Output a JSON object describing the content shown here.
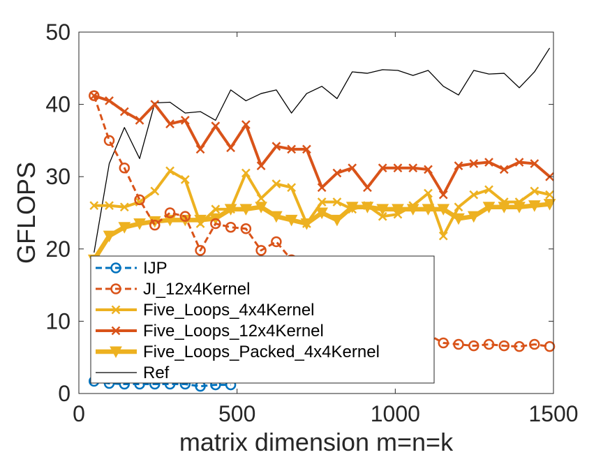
{
  "chart_data": {
    "type": "line",
    "xlabel": "matrix dimension m=n=k",
    "ylabel": "GFLOPS",
    "xlim": [
      0,
      1500
    ],
    "ylim": [
      0,
      50
    ],
    "xticks": [
      0,
      500,
      1000,
      1500
    ],
    "yticks": [
      0,
      10,
      20,
      30,
      40,
      50
    ],
    "grid": false,
    "legend_position": "bottom-left",
    "series": [
      {
        "name": "IJP",
        "color": "#0072BD",
        "style": "dashed",
        "marker": "circle",
        "x": [
          48,
          96,
          144,
          192,
          240,
          288,
          336,
          384,
          432,
          480
        ],
        "y": [
          1.7,
          1.4,
          1.3,
          1.3,
          1.3,
          1.3,
          1.3,
          1.0,
          1.2,
          1.2
        ]
      },
      {
        "name": "JI_12x4Kernel",
        "color": "#D95319",
        "style": "dashed",
        "marker": "circle",
        "x": [
          48,
          96,
          144,
          192,
          240,
          288,
          336,
          384,
          432,
          480,
          528,
          576,
          624,
          672,
          1152,
          1200,
          1248,
          1296,
          1344,
          1392,
          1440,
          1488
        ],
        "y": [
          41.2,
          35.0,
          31.2,
          26.8,
          23.3,
          25.0,
          24.5,
          19.8,
          23.5,
          23.0,
          22.8,
          19.8,
          21.0,
          18.5,
          7.0,
          6.8,
          6.6,
          6.8,
          6.6,
          6.5,
          6.8,
          6.5
        ]
      },
      {
        "name": "Five_Loops_4x4Kernel",
        "color": "#EDB120",
        "style": "solid",
        "marker": "x",
        "x": [
          48,
          96,
          144,
          192,
          240,
          288,
          336,
          384,
          432,
          480,
          528,
          576,
          624,
          672,
          720,
          768,
          816,
          864,
          912,
          960,
          1008,
          1056,
          1104,
          1152,
          1200,
          1248,
          1296,
          1344,
          1392,
          1440,
          1488
        ],
        "y": [
          26.0,
          26.0,
          25.8,
          26.5,
          28.0,
          30.8,
          29.6,
          23.5,
          25.5,
          25.5,
          30.5,
          27.0,
          29.0,
          28.5,
          23.5,
          26.5,
          26.5,
          25.5,
          26.0,
          24.5,
          24.8,
          26.0,
          27.7,
          21.8,
          25.8,
          27.5,
          28.2,
          26.5,
          26.5,
          28.0,
          27.5
        ]
      },
      {
        "name": "Five_Loops_12x4Kernel",
        "color": "#D95319",
        "style": "solid",
        "marker": "x",
        "x": [
          48,
          96,
          144,
          192,
          240,
          288,
          336,
          384,
          432,
          480,
          528,
          576,
          624,
          672,
          720,
          768,
          816,
          864,
          912,
          960,
          1008,
          1056,
          1104,
          1152,
          1200,
          1248,
          1296,
          1344,
          1392,
          1440,
          1488
        ],
        "y": [
          41.2,
          40.5,
          39.0,
          37.8,
          40.0,
          37.3,
          37.8,
          33.8,
          37.0,
          34.0,
          37.2,
          31.5,
          34.2,
          33.8,
          33.8,
          28.5,
          30.5,
          31.2,
          28.5,
          31.2,
          31.2,
          31.2,
          31.0,
          27.5,
          31.5,
          31.8,
          32.0,
          31.0,
          32.0,
          31.8,
          30.0
        ]
      },
      {
        "name": "Five_Loops_Packed_4x4Kernel",
        "color": "#EDB120",
        "style": "solid-thick",
        "marker": "triangle-down",
        "x": [
          48,
          96,
          144,
          192,
          240,
          288,
          336,
          384,
          432,
          480,
          528,
          576,
          624,
          672,
          720,
          768,
          816,
          864,
          912,
          960,
          1008,
          1056,
          1104,
          1152,
          1200,
          1248,
          1296,
          1344,
          1392,
          1440,
          1488
        ],
        "y": [
          18.5,
          21.8,
          23.0,
          23.5,
          23.8,
          24.0,
          24.0,
          24.0,
          24.2,
          25.5,
          25.5,
          25.8,
          24.5,
          24.0,
          23.5,
          25.0,
          24.0,
          25.8,
          25.8,
          25.5,
          25.5,
          25.5,
          25.5,
          25.5,
          24.2,
          24.5,
          25.8,
          25.8,
          25.8,
          26.0,
          26.2
        ]
      },
      {
        "name": "Ref",
        "color": "#000000",
        "style": "thin",
        "marker": "none",
        "x": [
          48,
          96,
          144,
          192,
          240,
          288,
          336,
          384,
          432,
          480,
          528,
          576,
          624,
          672,
          720,
          768,
          816,
          864,
          912,
          960,
          1008,
          1056,
          1104,
          1152,
          1200,
          1248,
          1296,
          1344,
          1392,
          1440,
          1488
        ],
        "y": [
          19.5,
          31.8,
          36.8,
          32.5,
          40.2,
          40.3,
          38.8,
          39.0,
          37.8,
          42.0,
          40.5,
          41.5,
          42.0,
          38.8,
          41.5,
          42.5,
          40.8,
          44.5,
          44.3,
          44.8,
          44.7,
          44.0,
          44.7,
          42.5,
          41.3,
          44.7,
          44.2,
          44.3,
          42.3,
          44.5,
          47.8
        ]
      }
    ]
  }
}
